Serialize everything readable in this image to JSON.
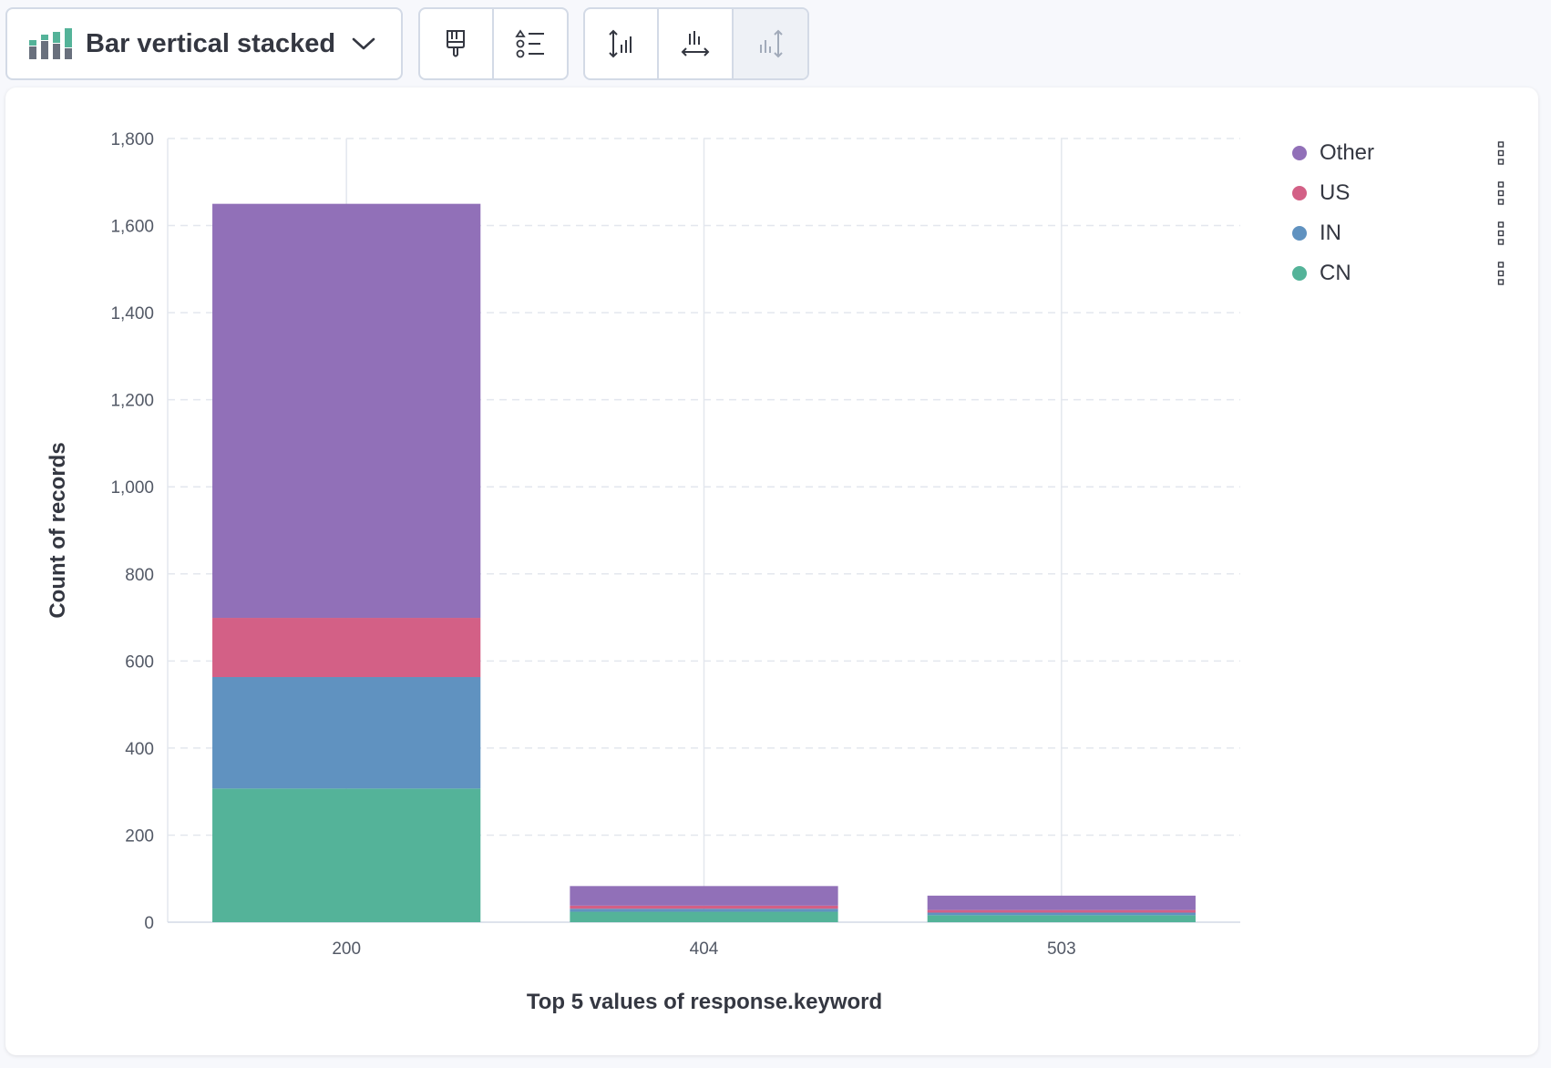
{
  "toolbar": {
    "chart_type_label": "Bar vertical stacked",
    "chart_type_icon": "bar-stacked-icon",
    "chevron_icon": "chevron-down-icon",
    "visual_options_icon": "paintbrush-icon",
    "legend_settings_icon": "list-settings-icon",
    "left_axis_icon": "left-axis-icon",
    "bottom_axis_icon": "bottom-axis-icon",
    "right_axis_icon": "right-axis-icon"
  },
  "chart_data": {
    "type": "bar",
    "stacked": true,
    "xlabel": "Top 5 values of response.keyword",
    "ylabel": "Count of records",
    "categories": [
      "200",
      "404",
      "503"
    ],
    "ylim": [
      0,
      1800
    ],
    "yticks": [
      0,
      200,
      400,
      600,
      800,
      1000,
      1200,
      1400,
      1600,
      1800
    ],
    "ytick_labels": [
      "0",
      "200",
      "400",
      "600",
      "800",
      "1,000",
      "1,200",
      "1,400",
      "1,600",
      "1,800"
    ],
    "grid": true,
    "legend_position": "right",
    "series": [
      {
        "name": "CN",
        "color": "#54b399",
        "values": [
          307,
          24,
          16
        ]
      },
      {
        "name": "IN",
        "color": "#6092c0",
        "values": [
          256,
          7,
          6
        ]
      },
      {
        "name": "US",
        "color": "#d36086",
        "values": [
          136,
          7,
          6
        ]
      },
      {
        "name": "Other",
        "color": "#9170b8",
        "values": [
          951,
          45,
          33
        ]
      }
    ]
  },
  "legend": {
    "items": [
      {
        "label": "Other",
        "color": "#9170b8"
      },
      {
        "label": "US",
        "color": "#d36086"
      },
      {
        "label": "IN",
        "color": "#6092c0"
      },
      {
        "label": "CN",
        "color": "#54b399"
      }
    ]
  }
}
